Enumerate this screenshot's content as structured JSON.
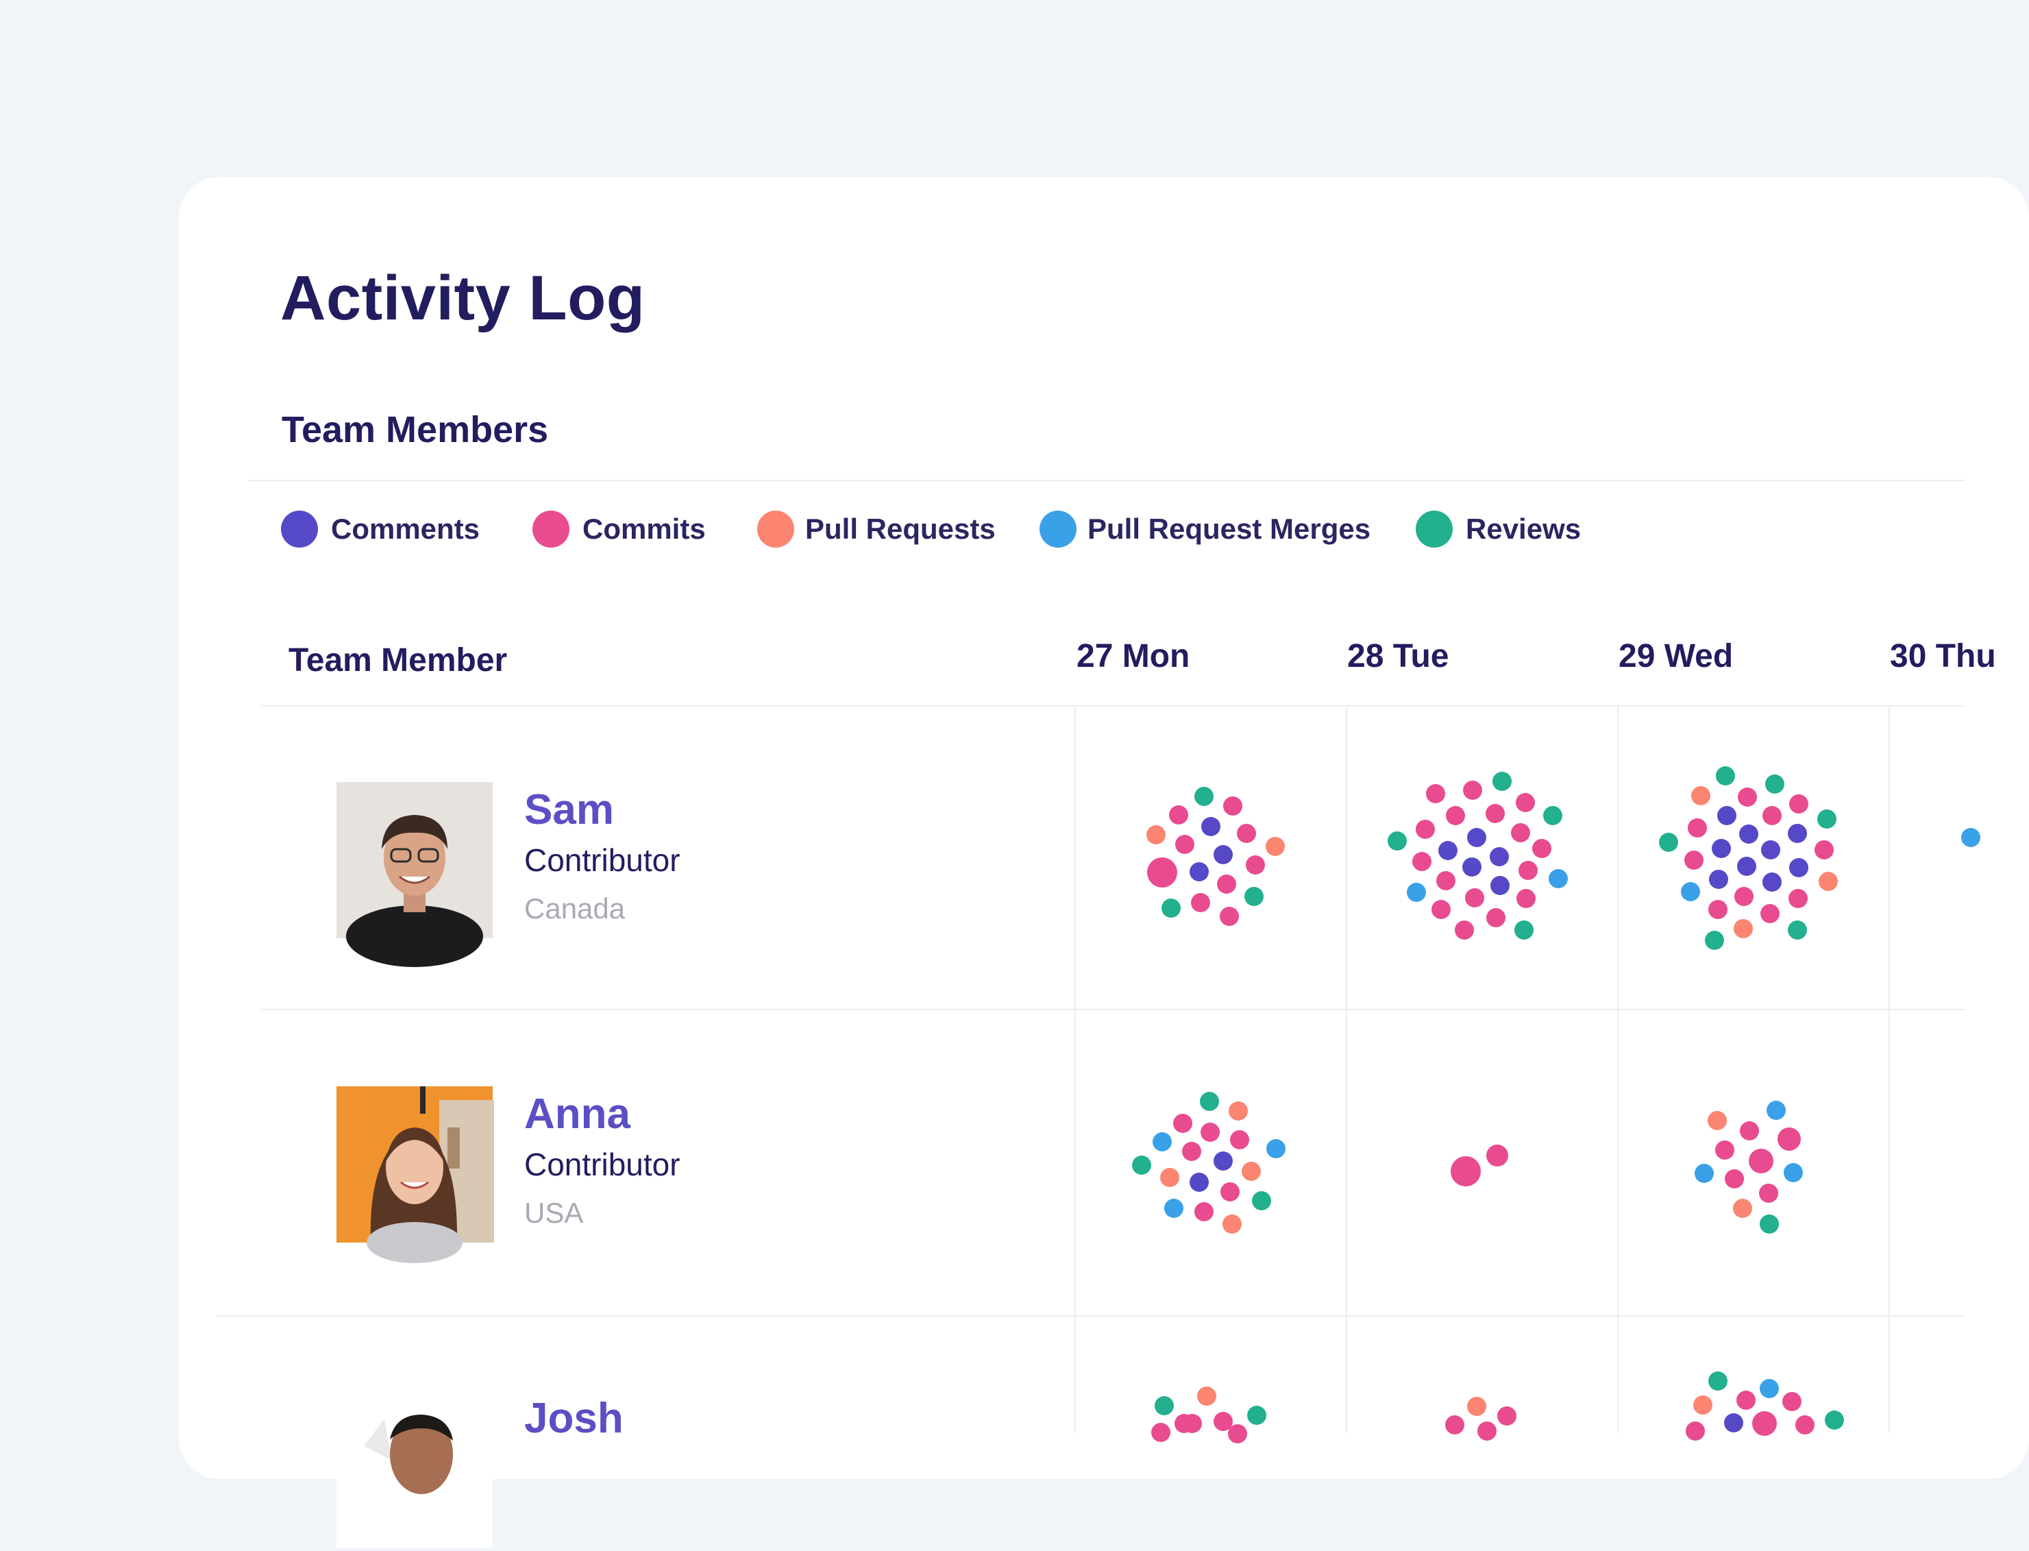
{
  "colors": {
    "comments": "#5549c8",
    "commits": "#e84b8f",
    "pull_requests": "#fb8570",
    "pull_request_merges": "#3aa0e8",
    "reviews": "#22b08f",
    "title": "#211d5e",
    "name": "#5a4fc4"
  },
  "page": {
    "title": "Activity Log",
    "section_title": "Team Members"
  },
  "legend": [
    {
      "label": "Comments",
      "color": "#5549c8"
    },
    {
      "label": "Commits",
      "color": "#e84b8f"
    },
    {
      "label": "Pull Requests",
      "color": "#fb8570"
    },
    {
      "label": "Pull Request Merges",
      "color": "#3aa0e8"
    },
    {
      "label": "Reviews",
      "color": "#22b08f"
    }
  ],
  "table": {
    "member_header": "Team Member",
    "days": [
      "27 Mon",
      "28 Tue",
      "29 Wed",
      "30 Thu"
    ]
  },
  "members": [
    {
      "name": "Sam",
      "role": "Contributor",
      "location": "Canada",
      "avatar_icon": "person-photo"
    },
    {
      "name": "Anna",
      "role": "Contributor",
      "location": "USA",
      "avatar_icon": "person-photo"
    },
    {
      "name": "Josh",
      "role": "",
      "location": "",
      "avatar_icon": "person-photo"
    }
  ]
}
